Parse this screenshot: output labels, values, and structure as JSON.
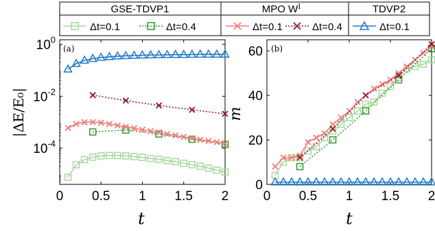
{
  "legend": {
    "groups": [
      {
        "title": "GSE-TDVP1",
        "entries": [
          {
            "label": "Δt=0.1",
            "color": "#a8d8a0",
            "marker": "square",
            "style": "solid"
          },
          {
            "label": "Δt=0.4",
            "color": "#2e9a2e",
            "marker": "square",
            "style": "dotted"
          }
        ]
      },
      {
        "title": "MPO W",
        "title_sup": "I",
        "entries": [
          {
            "label": "Δt=0.1",
            "color": "#f47a7a",
            "marker": "x",
            "style": "solid"
          },
          {
            "label": "Δt=0.4",
            "color": "#8b1a2e",
            "marker": "x",
            "style": "dotted"
          }
        ]
      },
      {
        "title": "TDVP2",
        "entries": [
          {
            "label": "Δt=0.1",
            "color": "#1f78c8",
            "marker": "triangle",
            "style": "solid"
          }
        ]
      }
    ]
  },
  "chart_data": [
    {
      "type": "line",
      "panel_label": "(a)",
      "xlabel": "t",
      "ylabel": "|ΔE/E₀|",
      "yscale": "log",
      "xlim": [
        0,
        2
      ],
      "ylim": [
        4e-06,
        1.5
      ],
      "xticks": [
        "0",
        "0.5",
        "1",
        "1.5",
        "2"
      ],
      "yticks": [
        {
          "value": 1,
          "base": "10",
          "exp": "0"
        },
        {
          "value": 0.01,
          "base": "10",
          "exp": "-2"
        },
        {
          "value": 0.0001,
          "base": "10",
          "exp": "-4"
        }
      ],
      "series": [
        {
          "name": "GSE-TDVP1 Δt=0.1",
          "color": "#a8d8a0",
          "marker": "square",
          "style": "solid",
          "x": [
            0.1,
            0.2,
            0.3,
            0.4,
            0.5,
            0.6,
            0.7,
            0.8,
            0.9,
            1.0,
            1.1,
            1.2,
            1.3,
            1.4,
            1.5,
            1.6,
            1.7,
            1.8,
            1.9,
            2.0
          ],
          "y": [
            7.5e-06,
            2.3e-05,
            3.6e-05,
            4.5e-05,
            5e-05,
            5.2e-05,
            5.2e-05,
            5e-05,
            4.7e-05,
            4.4e-05,
            4e-05,
            3.7e-05,
            3.3e-05,
            3e-05,
            2.6e-05,
            2.3e-05,
            2e-05,
            1.7e-05,
            1.4e-05,
            1.2e-05
          ]
        },
        {
          "name": "GSE-TDVP1 Δt=0.4",
          "color": "#2e9a2e",
          "marker": "square",
          "style": "dotted",
          "x": [
            0.4,
            0.8,
            1.2,
            1.6,
            2.0
          ],
          "y": [
            0.00042,
            0.0005,
            0.00035,
            0.00022,
            0.00014
          ]
        },
        {
          "name": "MPO W^I Δt=0.1",
          "color": "#f47a7a",
          "marker": "x",
          "style": "solid",
          "x": [
            0.1,
            0.2,
            0.3,
            0.4,
            0.5,
            0.6,
            0.7,
            0.8,
            0.9,
            1.0,
            1.1,
            1.2,
            1.3,
            1.4,
            1.5,
            1.6,
            1.7,
            1.8,
            1.9,
            2.0
          ],
          "y": [
            0.0006,
            0.00085,
            0.001,
            0.001,
            0.00095,
            0.00085,
            0.00075,
            0.00066,
            0.00058,
            0.00051,
            0.00045,
            0.0004,
            0.00035,
            0.00031,
            0.00027,
            0.00024,
            0.00021,
            0.00019,
            0.00017,
            0.00015
          ]
        },
        {
          "name": "MPO W^I Δt=0.4",
          "color": "#8b1a2e",
          "marker": "x",
          "style": "dotted",
          "x": [
            0.4,
            0.8,
            1.2,
            1.6,
            2.0
          ],
          "y": [
            0.011,
            0.0068,
            0.0044,
            0.003,
            0.0021
          ]
        },
        {
          "name": "TDVP2 Δt=0.1",
          "color": "#1f78c8",
          "marker": "triangle",
          "style": "solid",
          "x": [
            0.1,
            0.2,
            0.3,
            0.4,
            0.5,
            0.6,
            0.7,
            0.8,
            0.9,
            1.0,
            1.1,
            1.2,
            1.3,
            1.4,
            1.5,
            1.6,
            1.7,
            1.8,
            1.9,
            2.0
          ],
          "y": [
            0.11,
            0.18,
            0.24,
            0.28,
            0.31,
            0.33,
            0.35,
            0.36,
            0.37,
            0.38,
            0.385,
            0.39,
            0.395,
            0.4,
            0.4,
            0.405,
            0.41,
            0.41,
            0.41,
            0.41
          ]
        }
      ]
    },
    {
      "type": "line",
      "panel_label": "(b)",
      "xlabel": "t",
      "ylabel": "m",
      "yscale": "linear",
      "xlim": [
        0,
        2
      ],
      "ylim": [
        0,
        65
      ],
      "xticks": [
        "0",
        "0.5",
        "1",
        "1.5",
        "2"
      ],
      "yticks": [
        "0",
        "20",
        "40",
        "60"
      ],
      "series": [
        {
          "name": "GSE-TDVP1 Δt=0.1",
          "color": "#a8d8a0",
          "marker": "square",
          "style": "solid",
          "x": [
            0.1,
            0.2,
            0.3,
            0.4,
            0.5,
            0.6,
            0.7,
            0.8,
            0.9,
            1.0,
            1.1,
            1.2,
            1.3,
            1.4,
            1.5,
            1.6,
            1.7,
            1.8,
            1.9,
            2.0
          ],
          "y": [
            4,
            10,
            12,
            12,
            15,
            17,
            21,
            24,
            27,
            30,
            33,
            36,
            37,
            41,
            44,
            48,
            52,
            53,
            54,
            56
          ]
        },
        {
          "name": "GSE-TDVP1 Δt=0.4",
          "color": "#2e9a2e",
          "marker": "square",
          "style": "dotted",
          "x": [
            0.4,
            0.8,
            1.2,
            1.6,
            2.0
          ],
          "y": [
            8,
            20,
            33,
            47,
            61
          ]
        },
        {
          "name": "MPO W^I Δt=0.1",
          "color": "#f47a7a",
          "marker": "x",
          "style": "solid",
          "x": [
            0.1,
            0.2,
            0.3,
            0.4,
            0.5,
            0.6,
            0.7,
            0.8,
            0.9,
            1.0,
            1.1,
            1.2,
            1.3,
            1.4,
            1.5,
            1.6,
            1.7,
            1.8,
            1.9,
            2.0
          ],
          "y": [
            8,
            12,
            12,
            13,
            19,
            21,
            23,
            27,
            30,
            33,
            37,
            40,
            43,
            45,
            47,
            50,
            53,
            56,
            59,
            62
          ]
        },
        {
          "name": "MPO W^I Δt=0.4",
          "color": "#8b1a2e",
          "marker": "x",
          "style": "dotted",
          "x": [
            0.4,
            0.8,
            1.2,
            1.6,
            2.0
          ],
          "y": [
            12,
            25,
            40,
            49,
            63
          ]
        },
        {
          "name": "TDVP2 Δt=0.1",
          "color": "#1f78c8",
          "marker": "triangle",
          "style": "solid",
          "x": [
            0.1,
            0.2,
            0.3,
            0.4,
            0.5,
            0.6,
            0.7,
            0.8,
            0.9,
            1.0,
            1.1,
            1.2,
            1.3,
            1.4,
            1.5,
            1.6,
            1.7,
            1.8,
            1.9,
            2.0
          ],
          "y": [
            1,
            1,
            1,
            1,
            1,
            1,
            1,
            1,
            1,
            1,
            1,
            1,
            1,
            1,
            1,
            1,
            1,
            1,
            1,
            1
          ]
        }
      ]
    }
  ]
}
